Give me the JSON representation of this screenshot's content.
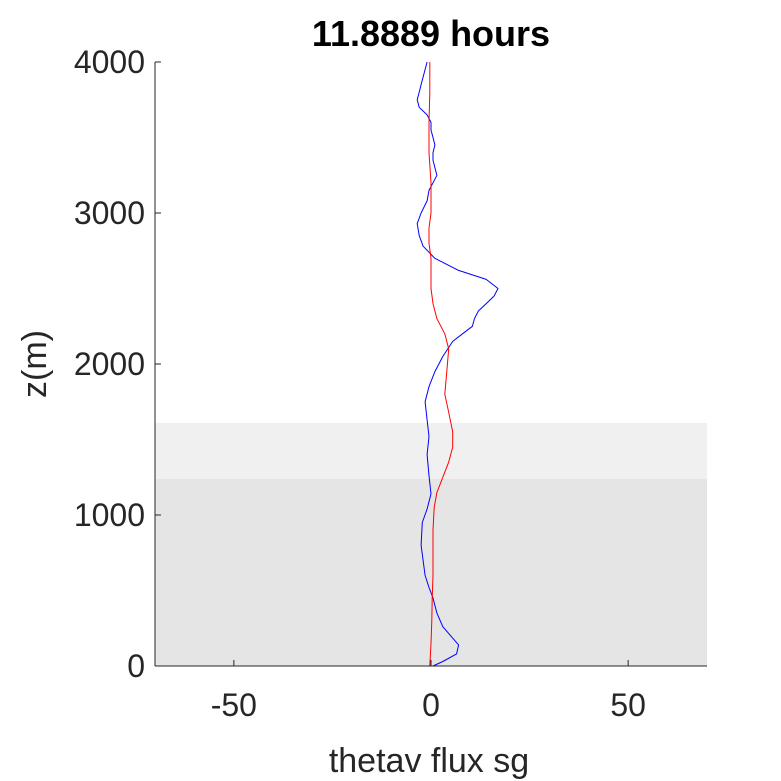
{
  "chart_data": {
    "type": "line",
    "title": "11.8889 hours",
    "xlabel": "thetav flux sg",
    "ylabel": "z(m)",
    "xlim": [
      -70,
      70
    ],
    "ylim": [
      0,
      4000
    ],
    "xticks": [
      -50,
      0,
      50
    ],
    "yticks": [
      0,
      1000,
      2000,
      3000,
      4000
    ],
    "xtick_labels": [
      "-50",
      "0",
      "50"
    ],
    "ytick_labels": [
      "0",
      "1000",
      "2000",
      "3000",
      "4000"
    ],
    "grid": false,
    "legend": "none",
    "shaded_bands": [
      {
        "y0": 0,
        "y1": 1240,
        "color": "#e5e5e5"
      },
      {
        "y0": 1240,
        "y1": 1610,
        "color": "#f0f0f0"
      }
    ],
    "series": [
      {
        "color": "#0000ff",
        "x": [
          0.5,
          3,
          6.5,
          7,
          5,
          3,
          1.5,
          0.5,
          -0.5,
          -1.5,
          -2,
          -2.5,
          -2.2,
          -1,
          0,
          -0.5,
          -1,
          -0.5,
          -1,
          -1.5,
          -0.5,
          1,
          3,
          5.5,
          8,
          10.5,
          11,
          12,
          14,
          16,
          17,
          14,
          7,
          1,
          -2,
          -3,
          -3.5,
          -2.5,
          -1,
          -0.5,
          0.5,
          1.5,
          1,
          0.5,
          0.5,
          1,
          0.5,
          0,
          0,
          -1,
          -3,
          -3.5,
          -3,
          -2.5,
          -1.5,
          -1
        ],
        "y": [
          0,
          30,
          80,
          140,
          200,
          260,
          350,
          450,
          520,
          600,
          700,
          800,
          950,
          1040,
          1140,
          1260,
          1400,
          1520,
          1630,
          1750,
          1850,
          1950,
          2050,
          2150,
          2200,
          2250,
          2300,
          2350,
          2400,
          2450,
          2500,
          2560,
          2620,
          2700,
          2780,
          2850,
          2930,
          3000,
          3080,
          3150,
          3200,
          3250,
          3300,
          3350,
          3400,
          3450,
          3500,
          3550,
          3600,
          3650,
          3700,
          3750,
          3800,
          3850,
          3950,
          4000
        ]
      },
      {
        "color": "#ff0000",
        "x": [
          -0.3,
          0,
          0.2,
          0.3,
          0.5,
          0.5,
          0.5,
          0.5,
          0.8,
          1.5,
          3,
          4.5,
          5.5,
          5.5,
          4.5,
          3.5,
          4,
          4.5,
          3.5,
          1.5,
          0.5,
          0,
          0,
          0,
          -0.5,
          -0.5,
          0,
          0,
          0,
          -0.5,
          -0.5,
          -0.3,
          -0.3
        ],
        "y": [
          0,
          150,
          300,
          450,
          600,
          700,
          800,
          900,
          1050,
          1150,
          1250,
          1350,
          1450,
          1550,
          1680,
          1800,
          1950,
          2100,
          2200,
          2300,
          2400,
          2500,
          2600,
          2700,
          2800,
          2900,
          3000,
          3100,
          3200,
          3400,
          3600,
          3800,
          4000
        ]
      }
    ]
  }
}
